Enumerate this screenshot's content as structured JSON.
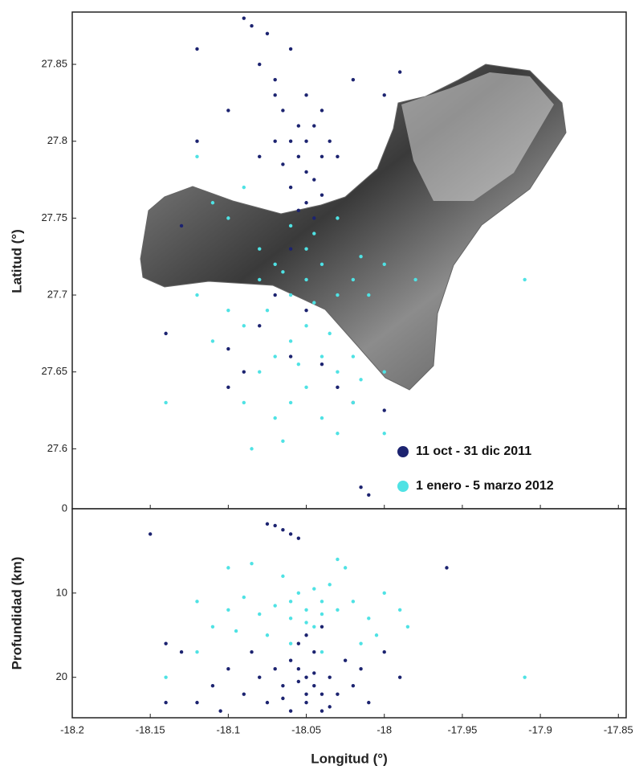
{
  "chart_data": [
    {
      "type": "scatter",
      "ylabel": "Latitud (°)",
      "xlim": [
        -18.2,
        -17.845
      ],
      "xticks": [
        -18.2,
        -18.15,
        -18.1,
        -18.05,
        -18,
        -17.95,
        -17.9,
        -17.85
      ],
      "ylim": [
        27.561,
        27.884
      ],
      "yticks": [
        27.6,
        27.65,
        27.7,
        27.75,
        27.8,
        27.85
      ],
      "legend": "lower right",
      "series": [
        {
          "name": "11 oct - 31 dic 2011",
          "color": "#1c2370",
          "x": [
            -18.06,
            -18.07,
            -18.05,
            -18.065,
            -18.055,
            -18.045,
            -18.06,
            -18.05,
            -18.04,
            -18.055,
            -18.065,
            -18.05,
            -18.045,
            -18.06,
            -18.04,
            -18.05,
            -18.055,
            -18.045,
            -18.07,
            -18.08,
            -18.075,
            -18.085,
            -18.09,
            -18.04,
            -18.035,
            -18.03,
            -18.07,
            -18.08,
            -18.1,
            -18.12,
            -18.02,
            -18.0,
            -17.99,
            -18.06,
            -18.04,
            -18.07,
            -18.05,
            -18.08,
            -18.06,
            -18.04,
            -18.03,
            -18.02,
            -18.09,
            -18.1,
            -18.14,
            -18.1,
            -18.01,
            -18.015,
            -18.0,
            -18.12,
            -18.13
          ],
          "y": [
            27.86,
            27.84,
            27.83,
            27.82,
            27.81,
            27.81,
            27.8,
            27.8,
            27.79,
            27.79,
            27.785,
            27.78,
            27.775,
            27.77,
            27.765,
            27.76,
            27.755,
            27.75,
            27.83,
            27.85,
            27.87,
            27.875,
            27.88,
            27.82,
            27.8,
            27.79,
            27.8,
            27.79,
            27.82,
            27.86,
            27.84,
            27.83,
            27.845,
            27.73,
            27.72,
            27.7,
            27.69,
            27.68,
            27.66,
            27.655,
            27.64,
            27.63,
            27.65,
            27.665,
            27.675,
            27.64,
            27.57,
            27.575,
            27.625,
            27.8,
            27.745
          ]
        },
        {
          "name": "1 enero - 5 marzo 2012",
          "color": "#4fe2e4",
          "x": [
            -18.05,
            -18.04,
            -18.06,
            -18.03,
            -18.07,
            -18.05,
            -18.045,
            -18.06,
            -18.08,
            -18.02,
            -18.01,
            -18.05,
            -18.06,
            -18.04,
            -18.07,
            -18.03,
            -18.08,
            -18.05,
            -18.06,
            -18.04,
            -18.02,
            -18.09,
            -18.1,
            -18.11,
            -18.09,
            -18.07,
            -18.03,
            -18.0,
            -18.0,
            -18.02,
            -18.1,
            -18.09,
            -18.12,
            -18.11,
            -18.03,
            -18.0,
            -17.98,
            -18.14,
            -18.085,
            -18.065,
            -17.91,
            -18.075,
            -18.035,
            -18.055,
            -18.015,
            -18.08,
            -18.12,
            -18.015,
            -18.045,
            -18.065
          ],
          "y": [
            27.71,
            27.72,
            27.7,
            27.7,
            27.72,
            27.73,
            27.74,
            27.745,
            27.73,
            27.71,
            27.7,
            27.68,
            27.67,
            27.66,
            27.66,
            27.65,
            27.65,
            27.64,
            27.63,
            27.62,
            27.63,
            27.68,
            27.69,
            27.67,
            27.63,
            27.62,
            27.61,
            27.61,
            27.65,
            27.66,
            27.75,
            27.77,
            27.79,
            27.76,
            27.75,
            27.72,
            27.71,
            27.63,
            27.6,
            27.605,
            27.71,
            27.69,
            27.675,
            27.655,
            27.645,
            27.71,
            27.7,
            27.725,
            27.695,
            27.715
          ]
        }
      ]
    },
    {
      "type": "scatter",
      "ylabel": "Profundidad (km)",
      "xlabel": "Longitud (°)",
      "xlim": [
        -18.2,
        -17.845
      ],
      "xticks": [
        -18.2,
        -18.15,
        -18.1,
        -18.05,
        -18,
        -17.95,
        -17.9,
        -17.85
      ],
      "ylim": [
        24.8,
        0
      ],
      "yticks": [
        0,
        10,
        20
      ],
      "series": [
        {
          "color": "#1c2370",
          "x": [
            -18.05,
            -18.045,
            -18.055,
            -18.04,
            -18.06,
            -18.05,
            -18.035,
            -18.065,
            -18.045,
            -18.055,
            -18.06,
            -18.04,
            -18.07,
            -18.03,
            -18.025,
            -18.08,
            -18.075,
            -18.02,
            -18.085,
            -18.09,
            -18.1,
            -18.11,
            -18.12,
            -18.015,
            -18.01,
            -18.0,
            -17.99,
            -18.05,
            -18.04,
            -18.07,
            -18.075,
            -18.065,
            -18.06,
            -18.055,
            -18.15,
            -17.96,
            -18.14,
            -18.13,
            -18.14,
            -18.105,
            -18.05,
            -18.045,
            -18.055,
            -18.035,
            -18.065
          ],
          "y": [
            20,
            21,
            19,
            22,
            18,
            23,
            20,
            21,
            17,
            16,
            24,
            24,
            19,
            22,
            18,
            20,
            23,
            21,
            17,
            22,
            19,
            21,
            23,
            19,
            23,
            17,
            20,
            15,
            14,
            2,
            1.8,
            2.5,
            3,
            3.5,
            3,
            7,
            16,
            17,
            23,
            24,
            22,
            19.5,
            20.5,
            23.5,
            22.5
          ]
        },
        {
          "color": "#4fe2e4",
          "x": [
            -18.05,
            -18.04,
            -18.06,
            -18.03,
            -18.07,
            -18.055,
            -18.045,
            -18.035,
            -18.065,
            -18.02,
            -18.01,
            -18.08,
            -18.09,
            -18.1,
            -18.11,
            -18.0,
            -17.99,
            -17.985,
            -18.025,
            -18.03,
            -18.085,
            -18.1,
            -18.12,
            -18.12,
            -18.14,
            -17.91,
            -18.06,
            -18.04,
            -18.075,
            -18.015,
            -18.05,
            -18.04,
            -18.06,
            -18.045,
            -18.095,
            -18.005
          ],
          "y": [
            12,
            11,
            13,
            12,
            11.5,
            10,
            14,
            9,
            8,
            11,
            13,
            12.5,
            10.5,
            12,
            14,
            10,
            12,
            14,
            7,
            6,
            6.5,
            7,
            11,
            17,
            20,
            20,
            16,
            17,
            15,
            16,
            13.5,
            12.5,
            11,
            9.5,
            14.5,
            15
          ]
        }
      ]
    }
  ]
}
